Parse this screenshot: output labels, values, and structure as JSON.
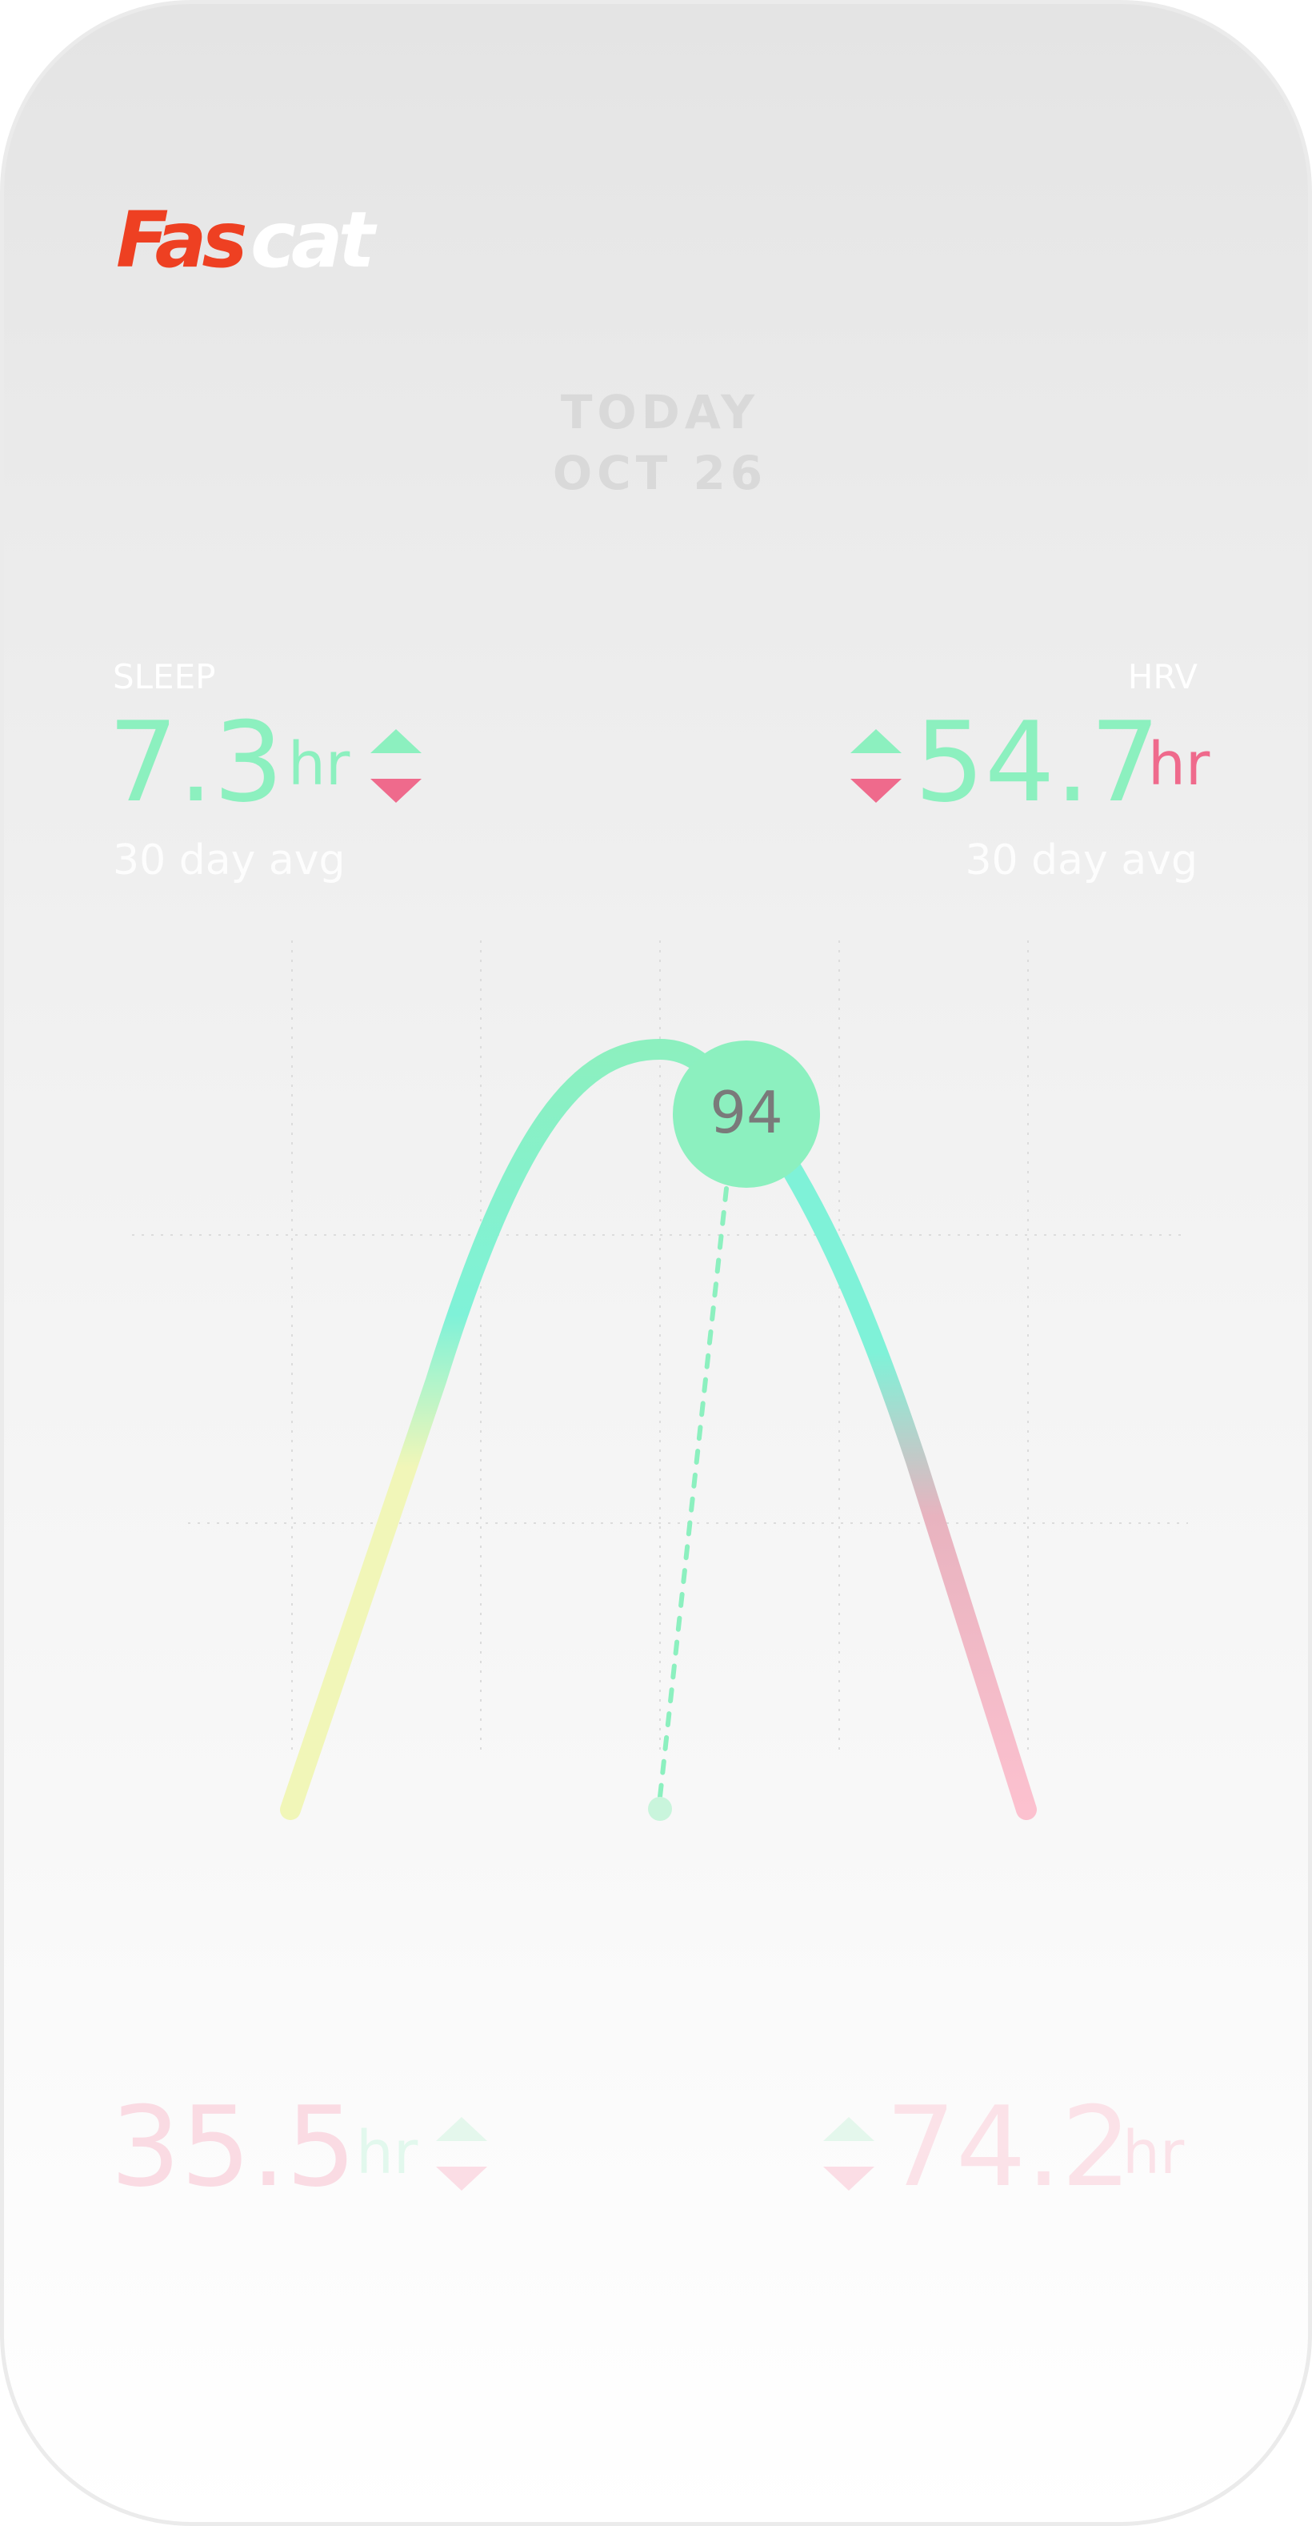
{
  "brand": {
    "part1": "Fas",
    "part2": "cat"
  },
  "date": {
    "line1": "TODAY",
    "line2": "OCT 26"
  },
  "sleep": {
    "label": "SLEEP",
    "value": "7.3",
    "unit": "hr",
    "caption": "30 day avg"
  },
  "hrv": {
    "label": "HRV",
    "value": "54.7",
    "unit": "hr",
    "caption": "30 day avg"
  },
  "score": {
    "value": "94"
  },
  "bottom_left": {
    "value": "35.5",
    "unit": "hr"
  },
  "bottom_right": {
    "value": "74.2",
    "unit": "hr"
  },
  "colors": {
    "green": "#8cf0bf",
    "teal": "#7ff2d8",
    "pink": "#ef6a8c",
    "yellow": "#f1f6b8",
    "brand_red": "#ee4022"
  }
}
